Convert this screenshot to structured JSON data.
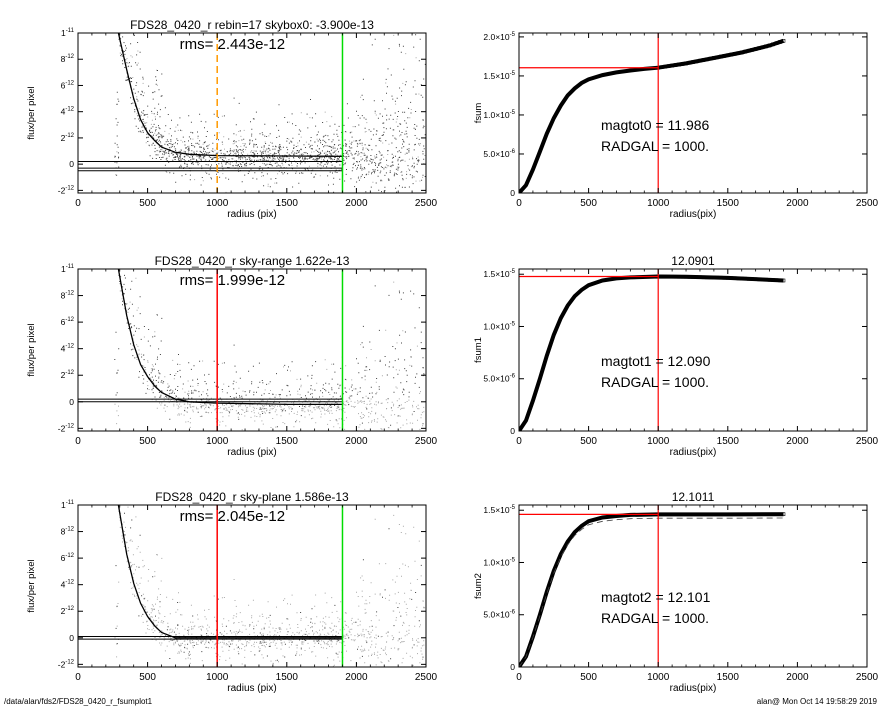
{
  "footer": {
    "path": "/data/alan/fds2/FDS28_0420_r_fsumplot1",
    "stamp": "alan@  Mon Oct 14 19:58:29 2019"
  },
  "colors": {
    "red": "#ff0000",
    "green": "#00dd00",
    "orange": "#ff9900",
    "dark_points": "#404040",
    "light_points": "#a8a8a8"
  },
  "chart_data": [
    {
      "type": "scatter",
      "title": "FDS28_0420_r rebin=17    skybox0: -3.900e-13",
      "annotation": "rms= 2.443e-12",
      "xlabel": "radius (pix)",
      "ylabel": "flux/per pixel",
      "xlim": [
        0,
        2500
      ],
      "ylim": [
        -2.2e-12,
        1e-11
      ],
      "xticks": [
        "0",
        "500",
        "1000",
        "1500",
        "2000",
        "2500"
      ],
      "yticks": [
        {
          "v": -2e-12,
          "m": "-2",
          "e": "-12"
        },
        {
          "v": 0,
          "m": "0",
          "e": ""
        },
        {
          "v": 2e-12,
          "m": "2",
          "e": "-12"
        },
        {
          "v": 4e-12,
          "m": "4",
          "e": "-12"
        },
        {
          "v": 6e-12,
          "m": "6",
          "e": "-12"
        },
        {
          "v": 8e-12,
          "m": "8",
          "e": "-12"
        },
        {
          "v": 1e-11,
          "m": "1",
          "e": "-11"
        }
      ],
      "profile": [
        [
          290,
          1e-11
        ],
        [
          350,
          7.2e-12
        ],
        [
          400,
          5e-12
        ],
        [
          450,
          3.4e-12
        ],
        [
          500,
          2.4e-12
        ],
        [
          550,
          1.8e-12
        ],
        [
          600,
          1.3e-12
        ],
        [
          700,
          9e-13
        ],
        [
          800,
          7.5e-13
        ],
        [
          1000,
          6.5e-13
        ],
        [
          1500,
          6.2e-13
        ],
        [
          1900,
          6e-13
        ]
      ],
      "hlines": [
        2e-13,
        -3e-13,
        -5e-13
      ],
      "vlines": [
        {
          "x": 1000,
          "color": "#ff9900",
          "dashed": true
        },
        {
          "x": 1900,
          "color": "#00dd00",
          "dashed": false
        }
      ],
      "scatter": "dark"
    },
    {
      "type": "scatter",
      "title": "FDS28_0420_r sky-range  1.622e-13",
      "annotation": "rms= 1.999e-12",
      "xlabel": "radius (pix)",
      "ylabel": "flux/per pixel",
      "xlim": [
        0,
        2500
      ],
      "ylim": [
        -2.2e-12,
        1e-11
      ],
      "xticks": [
        "0",
        "500",
        "1000",
        "1500",
        "2000",
        "2500"
      ],
      "yticks": [
        {
          "v": -2e-12,
          "m": "-2",
          "e": "-12"
        },
        {
          "v": 0,
          "m": "0",
          "e": ""
        },
        {
          "v": 2e-12,
          "m": "2",
          "e": "-12"
        },
        {
          "v": 4e-12,
          "m": "4",
          "e": "-12"
        },
        {
          "v": 6e-12,
          "m": "6",
          "e": "-12"
        },
        {
          "v": 8e-12,
          "m": "8",
          "e": "-12"
        },
        {
          "v": 1e-11,
          "m": "1",
          "e": "-11"
        }
      ],
      "profile": [
        [
          290,
          1e-11
        ],
        [
          350,
          6.5e-12
        ],
        [
          400,
          4.3e-12
        ],
        [
          450,
          2.8e-12
        ],
        [
          500,
          1.9e-12
        ],
        [
          550,
          1.2e-12
        ],
        [
          600,
          7e-13
        ],
        [
          700,
          2e-13
        ],
        [
          800,
          0
        ],
        [
          1000,
          -1e-13
        ],
        [
          1500,
          -2e-13
        ],
        [
          1900,
          -2e-13
        ]
      ],
      "hlines": [
        2e-13,
        0
      ],
      "vlines": [
        {
          "x": 1000,
          "color": "#ff0000",
          "dashed": false
        },
        {
          "x": 1900,
          "color": "#00dd00",
          "dashed": false
        }
      ],
      "scatter": "mixed"
    },
    {
      "type": "scatter",
      "title": "FDS28_0420_r sky-plane  1.586e-13",
      "annotation": "rms= 2.045e-12",
      "xlabel": "radius (pix)",
      "ylabel": "flux/per pixel",
      "xlim": [
        0,
        2500
      ],
      "ylim": [
        -2.2e-12,
        1e-11
      ],
      "xticks": [
        "0",
        "500",
        "1000",
        "1500",
        "2000",
        "2500"
      ],
      "yticks": [
        {
          "v": -2e-12,
          "m": "-2",
          "e": "-12"
        },
        {
          "v": 0,
          "m": "0",
          "e": ""
        },
        {
          "v": 2e-12,
          "m": "2",
          "e": "-12"
        },
        {
          "v": 4e-12,
          "m": "4",
          "e": "-12"
        },
        {
          "v": 6e-12,
          "m": "6",
          "e": "-12"
        },
        {
          "v": 8e-12,
          "m": "8",
          "e": "-12"
        },
        {
          "v": 1e-11,
          "m": "1",
          "e": "-11"
        }
      ],
      "profile": [
        [
          290,
          1e-11
        ],
        [
          350,
          6.3e-12
        ],
        [
          400,
          4.1e-12
        ],
        [
          450,
          2.6e-12
        ],
        [
          500,
          1.6e-12
        ],
        [
          550,
          9e-13
        ],
        [
          600,
          4e-13
        ],
        [
          700,
          0
        ],
        [
          800,
          0
        ],
        [
          1000,
          0
        ],
        [
          1500,
          0
        ],
        [
          1900,
          0
        ]
      ],
      "hlines": [
        1e-13,
        -1e-13
      ],
      "vlines": [
        {
          "x": 1000,
          "color": "#ff0000",
          "dashed": false
        },
        {
          "x": 1900,
          "color": "#00dd00",
          "dashed": false
        }
      ],
      "scatter": "light"
    },
    {
      "type": "line",
      "title": "",
      "xlabel": "radius(pix)",
      "ylabel": "fsum",
      "xlim": [
        0,
        2500
      ],
      "ylim": [
        0,
        2.05e-05
      ],
      "xticks": [
        "0",
        "500",
        "1000",
        "1500",
        "2000",
        "2500"
      ],
      "yticks": [
        {
          "v": 0,
          "m": "0",
          "e": ""
        },
        {
          "v": 5e-06,
          "m": "5.0×10",
          "e": "-6"
        },
        {
          "v": 1e-05,
          "m": "1.0×10",
          "e": "-5"
        },
        {
          "v": 1.5e-05,
          "m": "1.5×10",
          "e": "-5"
        },
        {
          "v": 2e-05,
          "m": "2.0×10",
          "e": "-5"
        }
      ],
      "curve": [
        [
          0,
          0
        ],
        [
          50,
          1e-06
        ],
        [
          100,
          3e-06
        ],
        [
          150,
          5.3e-06
        ],
        [
          200,
          7.6e-06
        ],
        [
          250,
          9.6e-06
        ],
        [
          300,
          1.12e-05
        ],
        [
          350,
          1.25e-05
        ],
        [
          400,
          1.34e-05
        ],
        [
          450,
          1.41e-05
        ],
        [
          500,
          1.455e-05
        ],
        [
          600,
          1.51e-05
        ],
        [
          700,
          1.545e-05
        ],
        [
          800,
          1.57e-05
        ],
        [
          900,
          1.59e-05
        ],
        [
          1000,
          1.605e-05
        ],
        [
          1200,
          1.66e-05
        ],
        [
          1400,
          1.73e-05
        ],
        [
          1600,
          1.8e-05
        ],
        [
          1800,
          1.89e-05
        ],
        [
          1900,
          1.95e-05
        ]
      ],
      "hline": 1.605e-05,
      "vline": 1000,
      "dashed_curve": false,
      "text_lines": [
        "magtot0 =  11.986",
        "RADGAL =   1000."
      ]
    },
    {
      "type": "line",
      "title": "12.0901",
      "xlabel": "radius(pix)",
      "ylabel": "fsum1",
      "xlim": [
        0,
        2500
      ],
      "ylim": [
        0,
        1.55e-05
      ],
      "xticks": [
        "0",
        "500",
        "1000",
        "1500",
        "2000",
        "2500"
      ],
      "yticks": [
        {
          "v": 0,
          "m": "0",
          "e": ""
        },
        {
          "v": 5e-06,
          "m": "5.0×10",
          "e": "-6"
        },
        {
          "v": 1e-05,
          "m": "1.0×10",
          "e": "-5"
        },
        {
          "v": 1.5e-05,
          "m": "1.5×10",
          "e": "-5"
        }
      ],
      "curve": [
        [
          0,
          0
        ],
        [
          50,
          1e-06
        ],
        [
          100,
          2.9e-06
        ],
        [
          150,
          5e-06
        ],
        [
          200,
          7.2e-06
        ],
        [
          250,
          9.2e-06
        ],
        [
          300,
          1.08e-05
        ],
        [
          350,
          1.2e-05
        ],
        [
          400,
          1.29e-05
        ],
        [
          450,
          1.35e-05
        ],
        [
          500,
          1.395e-05
        ],
        [
          600,
          1.44e-05
        ],
        [
          700,
          1.46e-05
        ],
        [
          800,
          1.47e-05
        ],
        [
          1000,
          1.478e-05
        ],
        [
          1200,
          1.475e-05
        ],
        [
          1500,
          1.465e-05
        ],
        [
          1900,
          1.44e-05
        ]
      ],
      "hline": 1.478e-05,
      "vline": 1000,
      "dashed_curve": false,
      "text_lines": [
        "magtot1 =  12.090",
        "RADGAL =   1000."
      ]
    },
    {
      "type": "line",
      "title": "12.1011",
      "xlabel": "radius(pix)",
      "ylabel": "fsum2",
      "xlim": [
        0,
        2500
      ],
      "ylim": [
        0,
        1.55e-05
      ],
      "xticks": [
        "0",
        "500",
        "1000",
        "1500",
        "2000",
        "2500"
      ],
      "yticks": [
        {
          "v": 0,
          "m": "0",
          "e": ""
        },
        {
          "v": 5e-06,
          "m": "5.0×10",
          "e": "-6"
        },
        {
          "v": 1e-05,
          "m": "1.0×10",
          "e": "-5"
        },
        {
          "v": 1.5e-05,
          "m": "1.5×10",
          "e": "-5"
        }
      ],
      "curve": [
        [
          0,
          0
        ],
        [
          50,
          1e-06
        ],
        [
          100,
          2.9e-06
        ],
        [
          150,
          5e-06
        ],
        [
          200,
          7.2e-06
        ],
        [
          250,
          9.2e-06
        ],
        [
          300,
          1.08e-05
        ],
        [
          350,
          1.2e-05
        ],
        [
          400,
          1.29e-05
        ],
        [
          450,
          1.35e-05
        ],
        [
          500,
          1.395e-05
        ],
        [
          600,
          1.43e-05
        ],
        [
          700,
          1.445e-05
        ],
        [
          800,
          1.455e-05
        ],
        [
          1000,
          1.46e-05
        ],
        [
          1200,
          1.46e-05
        ],
        [
          1500,
          1.46e-05
        ],
        [
          1900,
          1.462e-05
        ]
      ],
      "hline": 1.46e-05,
      "vline": 1000,
      "dashed_curve": true,
      "text_lines": [
        "magtot2 =  12.101",
        "RADGAL =   1000."
      ]
    }
  ]
}
